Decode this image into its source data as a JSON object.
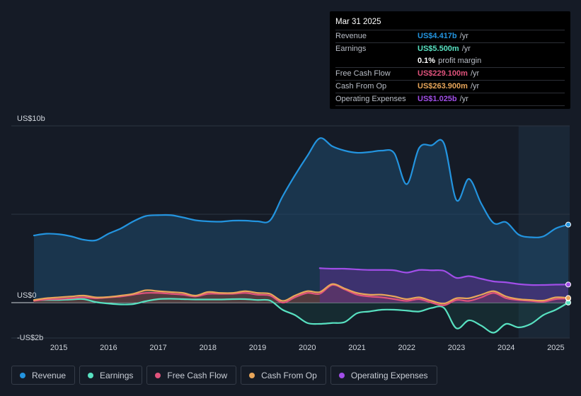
{
  "tooltip": {
    "date": "Mar 31 2025",
    "rows": [
      {
        "label": "Revenue",
        "value": "US$4.417b",
        "unit": "/yr",
        "color": "#2394df"
      },
      {
        "label": "Earnings",
        "value": "US$5.500m",
        "unit": "/yr",
        "color": "#58e1c1"
      },
      {
        "label": "",
        "value": "0.1%",
        "unit": "profit margin",
        "color": "#ffffff"
      },
      {
        "label": "Free Cash Flow",
        "value": "US$229.100m",
        "unit": "/yr",
        "color": "#e0537c"
      },
      {
        "label": "Cash From Op",
        "value": "US$263.900m",
        "unit": "/yr",
        "color": "#e8a65a"
      },
      {
        "label": "Operating Expenses",
        "value": "US$1.025b",
        "unit": "/yr",
        "color": "#a14ee8"
      }
    ]
  },
  "legend": [
    {
      "label": "Revenue",
      "color": "#2394df"
    },
    {
      "label": "Earnings",
      "color": "#58e1c1"
    },
    {
      "label": "Free Cash Flow",
      "color": "#e0537c"
    },
    {
      "label": "Cash From Op",
      "color": "#e8a65a"
    },
    {
      "label": "Operating Expenses",
      "color": "#a14ee8"
    }
  ],
  "chart_data": {
    "type": "area",
    "title": "",
    "xlabel": "",
    "ylabel": "",
    "y_unit": "US$b",
    "ylim": [
      -2,
      10
    ],
    "xlim": [
      2014.2,
      2025.25
    ],
    "y_axis_labels": [
      {
        "value": 10,
        "label": "US$10b"
      },
      {
        "value": 0,
        "label": "US$0"
      },
      {
        "value": -2,
        "label": "-US$2b"
      }
    ],
    "x_ticks": [
      2015,
      2016,
      2017,
      2018,
      2019,
      2020,
      2021,
      2022,
      2023,
      2024,
      2025
    ],
    "x_tick_labels": [
      "2015",
      "2016",
      "2017",
      "2018",
      "2019",
      "2020",
      "2021",
      "2022",
      "2023",
      "2024",
      "2025"
    ],
    "forecast_shade_start": 2024.25,
    "series": [
      {
        "name": "Revenue",
        "color": "#2394df",
        "points": [
          [
            2014.5,
            3.8
          ],
          [
            2014.75,
            3.9
          ],
          [
            2015.0,
            3.87
          ],
          [
            2015.25,
            3.75
          ],
          [
            2015.5,
            3.56
          ],
          [
            2015.75,
            3.53
          ],
          [
            2016.0,
            3.9
          ],
          [
            2016.25,
            4.2
          ],
          [
            2016.5,
            4.6
          ],
          [
            2016.75,
            4.9
          ],
          [
            2017.0,
            4.95
          ],
          [
            2017.25,
            4.95
          ],
          [
            2017.5,
            4.82
          ],
          [
            2017.75,
            4.66
          ],
          [
            2018.0,
            4.6
          ],
          [
            2018.25,
            4.58
          ],
          [
            2018.5,
            4.64
          ],
          [
            2018.75,
            4.64
          ],
          [
            2019.0,
            4.6
          ],
          [
            2019.25,
            4.65
          ],
          [
            2019.5,
            6.0
          ],
          [
            2019.75,
            7.2
          ],
          [
            2020.0,
            8.3
          ],
          [
            2020.25,
            9.3
          ],
          [
            2020.5,
            8.85
          ],
          [
            2020.75,
            8.6
          ],
          [
            2021.0,
            8.48
          ],
          [
            2021.25,
            8.52
          ],
          [
            2021.5,
            8.6
          ],
          [
            2021.75,
            8.45
          ],
          [
            2022.0,
            6.7
          ],
          [
            2022.25,
            8.75
          ],
          [
            2022.5,
            8.9
          ],
          [
            2022.75,
            9.0
          ],
          [
            2023.0,
            5.8
          ],
          [
            2023.25,
            7.0
          ],
          [
            2023.5,
            5.6
          ],
          [
            2023.75,
            4.5
          ],
          [
            2024.0,
            4.55
          ],
          [
            2024.25,
            3.85
          ],
          [
            2024.5,
            3.7
          ],
          [
            2024.75,
            3.75
          ],
          [
            2025.0,
            4.2
          ],
          [
            2025.25,
            4.417
          ]
        ]
      },
      {
        "name": "Earnings",
        "color": "#58e1c1",
        "points": [
          [
            2014.5,
            0.15
          ],
          [
            2014.75,
            0.15
          ],
          [
            2015.0,
            0.15
          ],
          [
            2015.25,
            0.18
          ],
          [
            2015.5,
            0.2
          ],
          [
            2015.75,
            0.03
          ],
          [
            2016.0,
            -0.05
          ],
          [
            2016.25,
            -0.1
          ],
          [
            2016.5,
            -0.08
          ],
          [
            2016.75,
            0.08
          ],
          [
            2017.0,
            0.2
          ],
          [
            2017.25,
            0.22
          ],
          [
            2017.5,
            0.2
          ],
          [
            2017.75,
            0.18
          ],
          [
            2018.0,
            0.18
          ],
          [
            2018.25,
            0.18
          ],
          [
            2018.5,
            0.2
          ],
          [
            2018.75,
            0.2
          ],
          [
            2019.0,
            0.15
          ],
          [
            2019.25,
            0.12
          ],
          [
            2019.5,
            -0.4
          ],
          [
            2019.75,
            -0.7
          ],
          [
            2020.0,
            -1.15
          ],
          [
            2020.25,
            -1.2
          ],
          [
            2020.5,
            -1.15
          ],
          [
            2020.75,
            -1.1
          ],
          [
            2021.0,
            -0.6
          ],
          [
            2021.25,
            -0.5
          ],
          [
            2021.5,
            -0.4
          ],
          [
            2021.75,
            -0.4
          ],
          [
            2022.0,
            -0.45
          ],
          [
            2022.25,
            -0.5
          ],
          [
            2022.5,
            -0.3
          ],
          [
            2022.75,
            -0.3
          ],
          [
            2023.0,
            -1.45
          ],
          [
            2023.25,
            -1.0
          ],
          [
            2023.5,
            -1.3
          ],
          [
            2023.75,
            -1.7
          ],
          [
            2024.0,
            -1.2
          ],
          [
            2024.25,
            -1.4
          ],
          [
            2024.5,
            -1.2
          ],
          [
            2024.75,
            -0.7
          ],
          [
            2025.0,
            -0.4
          ],
          [
            2025.25,
            0.0055
          ]
        ]
      },
      {
        "name": "Free Cash Flow",
        "color": "#e0537c",
        "points": [
          [
            2014.5,
            0.1
          ],
          [
            2014.75,
            0.18
          ],
          [
            2015.0,
            0.2
          ],
          [
            2015.25,
            0.25
          ],
          [
            2015.5,
            0.3
          ],
          [
            2015.75,
            0.25
          ],
          [
            2016.0,
            0.3
          ],
          [
            2016.25,
            0.35
          ],
          [
            2016.5,
            0.45
          ],
          [
            2016.75,
            0.55
          ],
          [
            2017.0,
            0.55
          ],
          [
            2017.25,
            0.5
          ],
          [
            2017.5,
            0.45
          ],
          [
            2017.75,
            0.35
          ],
          [
            2018.0,
            0.5
          ],
          [
            2018.25,
            0.5
          ],
          [
            2018.5,
            0.5
          ],
          [
            2018.75,
            0.55
          ],
          [
            2019.0,
            0.45
          ],
          [
            2019.25,
            0.4
          ],
          [
            2019.5,
            0.0
          ],
          [
            2019.75,
            0.3
          ],
          [
            2020.0,
            0.55
          ],
          [
            2020.25,
            0.5
          ],
          [
            2020.5,
            1.0
          ],
          [
            2020.75,
            0.75
          ],
          [
            2021.0,
            0.45
          ],
          [
            2021.25,
            0.35
          ],
          [
            2021.5,
            0.3
          ],
          [
            2021.75,
            0.2
          ],
          [
            2022.0,
            0.1
          ],
          [
            2022.25,
            0.2
          ],
          [
            2022.5,
            0.0
          ],
          [
            2022.75,
            -0.15
          ],
          [
            2023.0,
            0.15
          ],
          [
            2023.25,
            0.1
          ],
          [
            2023.5,
            0.3
          ],
          [
            2023.75,
            0.55
          ],
          [
            2024.0,
            0.25
          ],
          [
            2024.25,
            0.15
          ],
          [
            2024.5,
            0.1
          ],
          [
            2024.75,
            0.05
          ],
          [
            2025.0,
            0.2
          ],
          [
            2025.25,
            0.2291
          ]
        ]
      },
      {
        "name": "Cash From Op",
        "color": "#e8a65a",
        "points": [
          [
            2014.5,
            0.15
          ],
          [
            2014.75,
            0.25
          ],
          [
            2015.0,
            0.3
          ],
          [
            2015.25,
            0.35
          ],
          [
            2015.5,
            0.4
          ],
          [
            2015.75,
            0.3
          ],
          [
            2016.0,
            0.32
          ],
          [
            2016.25,
            0.4
          ],
          [
            2016.5,
            0.5
          ],
          [
            2016.75,
            0.7
          ],
          [
            2017.0,
            0.65
          ],
          [
            2017.25,
            0.6
          ],
          [
            2017.5,
            0.55
          ],
          [
            2017.75,
            0.4
          ],
          [
            2018.0,
            0.6
          ],
          [
            2018.25,
            0.55
          ],
          [
            2018.5,
            0.55
          ],
          [
            2018.75,
            0.65
          ],
          [
            2019.0,
            0.55
          ],
          [
            2019.25,
            0.5
          ],
          [
            2019.5,
            0.1
          ],
          [
            2019.75,
            0.4
          ],
          [
            2020.0,
            0.65
          ],
          [
            2020.25,
            0.6
          ],
          [
            2020.5,
            1.05
          ],
          [
            2020.75,
            0.8
          ],
          [
            2021.0,
            0.55
          ],
          [
            2021.25,
            0.45
          ],
          [
            2021.5,
            0.45
          ],
          [
            2021.75,
            0.35
          ],
          [
            2022.0,
            0.2
          ],
          [
            2022.25,
            0.3
          ],
          [
            2022.5,
            0.1
          ],
          [
            2022.75,
            -0.05
          ],
          [
            2023.0,
            0.25
          ],
          [
            2023.25,
            0.25
          ],
          [
            2023.5,
            0.45
          ],
          [
            2023.75,
            0.65
          ],
          [
            2024.0,
            0.35
          ],
          [
            2024.25,
            0.2
          ],
          [
            2024.5,
            0.15
          ],
          [
            2024.75,
            0.12
          ],
          [
            2025.0,
            0.3
          ],
          [
            2025.25,
            0.2639
          ]
        ]
      },
      {
        "name": "Operating Expenses",
        "color": "#a14ee8",
        "points": [
          [
            2020.25,
            1.95
          ],
          [
            2020.5,
            1.92
          ],
          [
            2020.75,
            1.92
          ],
          [
            2021.0,
            1.88
          ],
          [
            2021.25,
            1.85
          ],
          [
            2021.5,
            1.85
          ],
          [
            2021.75,
            1.83
          ],
          [
            2022.0,
            1.7
          ],
          [
            2022.25,
            1.85
          ],
          [
            2022.5,
            1.83
          ],
          [
            2022.75,
            1.8
          ],
          [
            2023.0,
            1.4
          ],
          [
            2023.25,
            1.5
          ],
          [
            2023.5,
            1.35
          ],
          [
            2023.75,
            1.2
          ],
          [
            2024.0,
            1.15
          ],
          [
            2024.25,
            1.05
          ],
          [
            2024.5,
            1.0
          ],
          [
            2024.75,
            1.0
          ],
          [
            2025.0,
            1.02
          ],
          [
            2025.25,
            1.025
          ]
        ]
      }
    ]
  }
}
